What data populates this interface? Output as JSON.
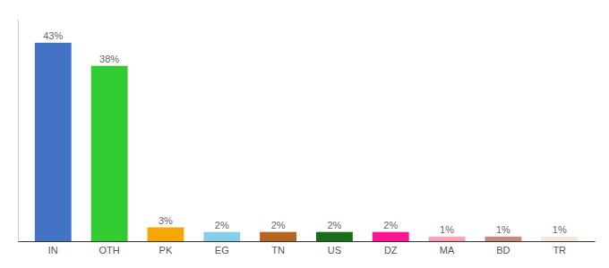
{
  "chart_data": {
    "type": "bar",
    "categories": [
      "IN",
      "OTH",
      "PK",
      "EG",
      "TN",
      "US",
      "DZ",
      "MA",
      "BD",
      "TR"
    ],
    "values": [
      43,
      38,
      3,
      2,
      2,
      2,
      2,
      1,
      1,
      1
    ],
    "value_labels": [
      "43%",
      "38%",
      "3%",
      "2%",
      "2%",
      "2%",
      "2%",
      "1%",
      "1%",
      "1%"
    ],
    "colors": [
      "#4472c4",
      "#33cc33",
      "#f5a800",
      "#87ceeb",
      "#b5651d",
      "#1a6e1a",
      "#ff1493",
      "#ff9eb5",
      "#c8897a",
      "#f0ead6"
    ],
    "ylim": [
      0,
      48
    ],
    "data_labels": true,
    "tick_labels": "x",
    "grid": false
  }
}
